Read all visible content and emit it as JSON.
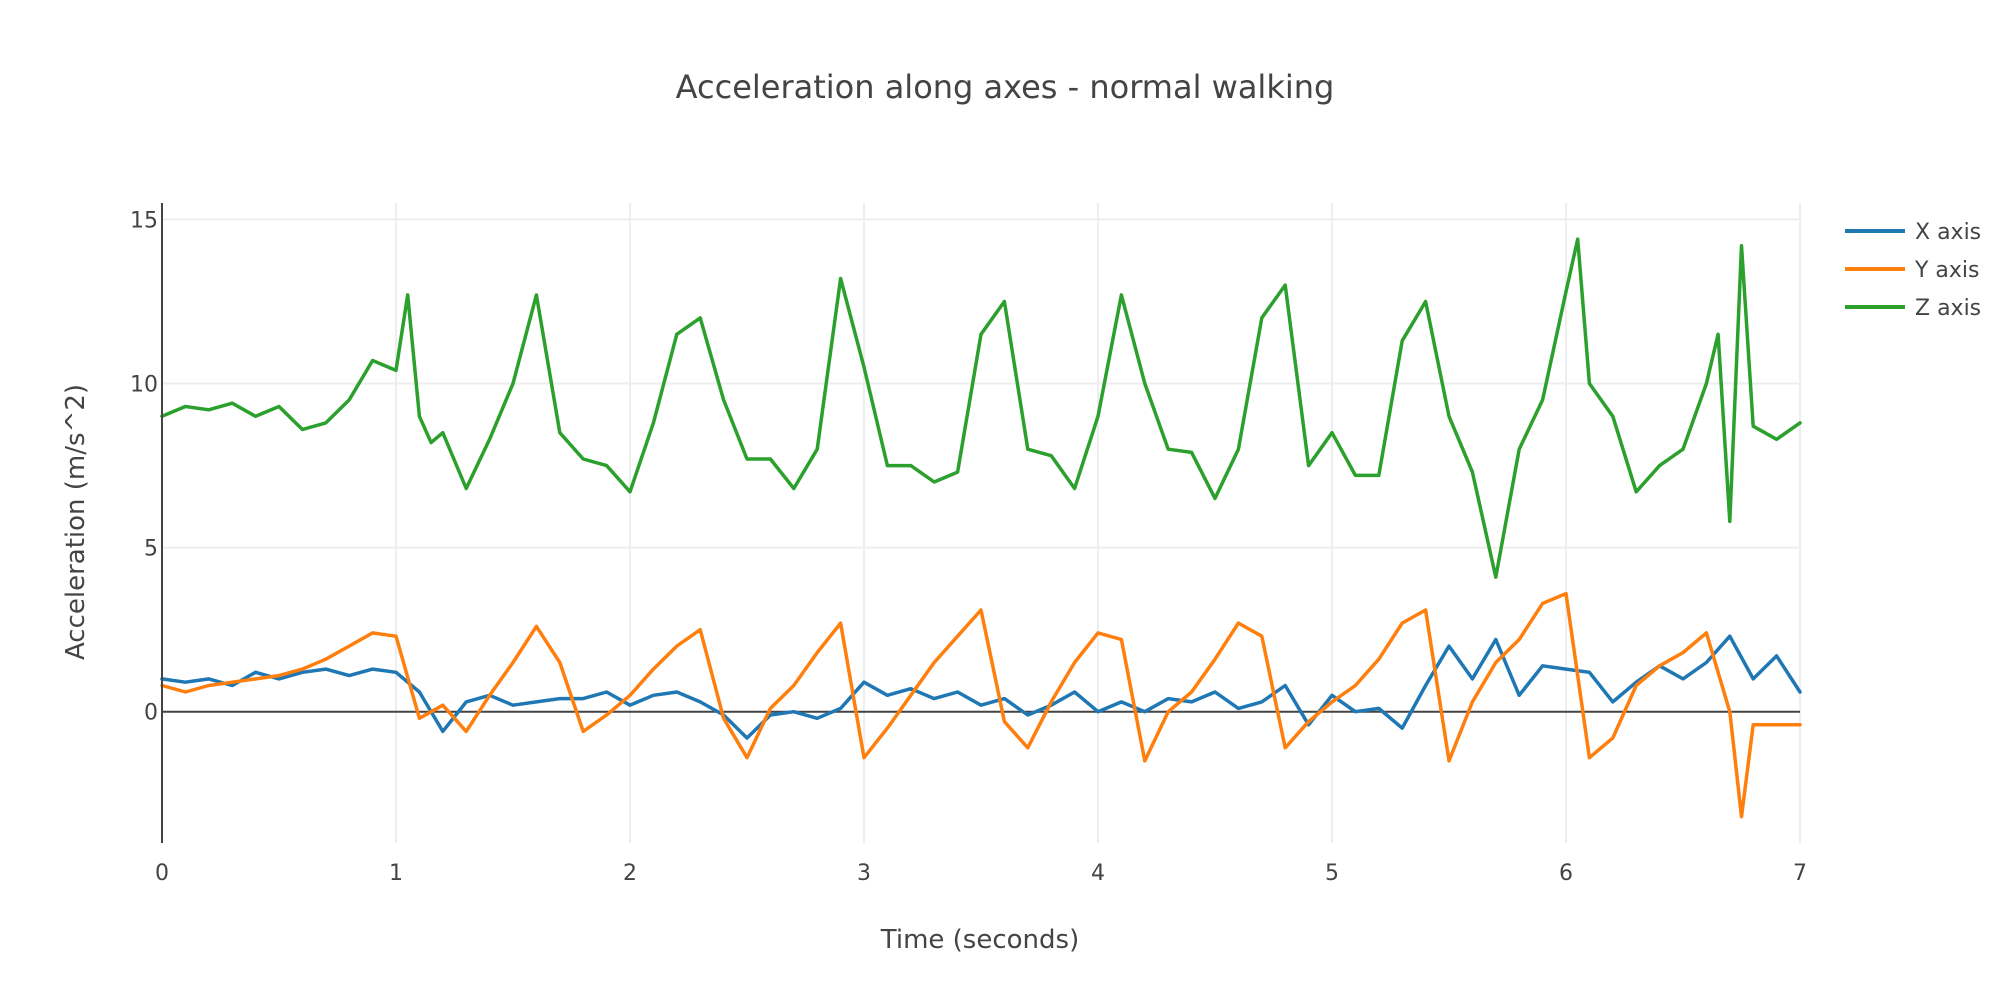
{
  "chart_data": {
    "type": "line",
    "title": "Acceleration along axes - normal walking",
    "xlabel": "Time (seconds)",
    "ylabel": "Acceleration (m/s^2)",
    "xlim": [
      0,
      7
    ],
    "ylim": [
      -4,
      15.5
    ],
    "x_ticks": [
      0,
      1,
      2,
      3,
      4,
      5,
      6,
      7
    ],
    "y_ticks": [
      0,
      5,
      10,
      15
    ],
    "grid": true,
    "legend_position": "top-right",
    "series": [
      {
        "name": "X axis",
        "color": "#1f77b4",
        "x": [
          0,
          0.1,
          0.2,
          0.3,
          0.4,
          0.5,
          0.6,
          0.7,
          0.8,
          0.9,
          1.0,
          1.1,
          1.2,
          1.3,
          1.4,
          1.5,
          1.6,
          1.7,
          1.8,
          1.9,
          2.0,
          2.1,
          2.2,
          2.3,
          2.4,
          2.5,
          2.6,
          2.7,
          2.8,
          2.9,
          3.0,
          3.1,
          3.2,
          3.3,
          3.4,
          3.5,
          3.6,
          3.7,
          3.8,
          3.9,
          4.0,
          4.1,
          4.2,
          4.3,
          4.4,
          4.5,
          4.6,
          4.7,
          4.8,
          4.9,
          5.0,
          5.1,
          5.2,
          5.3,
          5.4,
          5.5,
          5.6,
          5.7,
          5.8,
          5.9,
          6.0,
          6.1,
          6.2,
          6.3,
          6.4,
          6.5,
          6.6,
          6.7,
          6.8,
          6.9,
          7.0
        ],
        "y": [
          1.0,
          0.9,
          1.0,
          0.8,
          1.2,
          1.0,
          1.2,
          1.3,
          1.1,
          1.3,
          1.2,
          0.6,
          -0.6,
          0.3,
          0.5,
          0.2,
          0.3,
          0.4,
          0.4,
          0.6,
          0.2,
          0.5,
          0.6,
          0.3,
          -0.1,
          -0.8,
          -0.1,
          0.0,
          -0.2,
          0.1,
          0.9,
          0.5,
          0.7,
          0.4,
          0.6,
          0.2,
          0.4,
          -0.1,
          0.2,
          0.6,
          0.0,
          0.3,
          0.0,
          0.4,
          0.3,
          0.6,
          0.1,
          0.3,
          0.8,
          -0.4,
          0.5,
          0.0,
          0.1,
          -0.5,
          0.8,
          2.0,
          1.0,
          2.2,
          0.5,
          1.4,
          1.3,
          1.2,
          0.3,
          0.9,
          1.4,
          1.0,
          1.5,
          2.3,
          1.0,
          1.7,
          0.6
        ]
      },
      {
        "name": "Y axis",
        "color": "#ff7f0e",
        "x": [
          0,
          0.1,
          0.2,
          0.3,
          0.4,
          0.5,
          0.6,
          0.7,
          0.8,
          0.9,
          1.0,
          1.1,
          1.2,
          1.3,
          1.4,
          1.5,
          1.6,
          1.7,
          1.8,
          1.9,
          2.0,
          2.1,
          2.2,
          2.3,
          2.4,
          2.5,
          2.6,
          2.7,
          2.8,
          2.9,
          3.0,
          3.1,
          3.2,
          3.3,
          3.4,
          3.5,
          3.6,
          3.7,
          3.8,
          3.9,
          4.0,
          4.1,
          4.2,
          4.3,
          4.4,
          4.5,
          4.6,
          4.7,
          4.8,
          4.9,
          5.0,
          5.1,
          5.2,
          5.3,
          5.4,
          5.5,
          5.6,
          5.7,
          5.8,
          5.9,
          6.0,
          6.1,
          6.2,
          6.3,
          6.4,
          6.5,
          6.6,
          6.7,
          6.75,
          6.8,
          6.9,
          7.0
        ],
        "y": [
          0.8,
          0.6,
          0.8,
          0.9,
          1.0,
          1.1,
          1.3,
          1.6,
          2.0,
          2.4,
          2.3,
          -0.2,
          0.2,
          -0.6,
          0.5,
          1.5,
          2.6,
          1.5,
          -0.6,
          -0.1,
          0.5,
          1.3,
          2.0,
          2.5,
          -0.2,
          -1.4,
          0.1,
          0.8,
          1.8,
          2.7,
          -1.4,
          -0.5,
          0.5,
          1.5,
          2.3,
          3.1,
          -0.3,
          -1.1,
          0.3,
          1.5,
          2.4,
          2.2,
          -1.5,
          0.0,
          0.6,
          1.6,
          2.7,
          2.3,
          -1.1,
          -0.3,
          0.3,
          0.8,
          1.6,
          2.7,
          3.1,
          -1.5,
          0.3,
          1.5,
          2.2,
          3.3,
          3.6,
          -1.4,
          -0.8,
          0.8,
          1.4,
          1.8,
          2.4,
          0.0,
          -3.2,
          -0.4,
          -0.4,
          -0.4
        ]
      },
      {
        "name": "Z axis",
        "color": "#2ca02c",
        "x": [
          0,
          0.1,
          0.2,
          0.3,
          0.4,
          0.5,
          0.6,
          0.7,
          0.8,
          0.9,
          1.0,
          1.05,
          1.1,
          1.15,
          1.2,
          1.3,
          1.4,
          1.5,
          1.6,
          1.7,
          1.8,
          1.9,
          2.0,
          2.1,
          2.2,
          2.3,
          2.4,
          2.5,
          2.6,
          2.7,
          2.8,
          2.9,
          3.0,
          3.1,
          3.2,
          3.3,
          3.4,
          3.5,
          3.6,
          3.7,
          3.8,
          3.9,
          4.0,
          4.1,
          4.2,
          4.3,
          4.4,
          4.5,
          4.6,
          4.7,
          4.8,
          4.9,
          5.0,
          5.1,
          5.2,
          5.3,
          5.4,
          5.5,
          5.6,
          5.7,
          5.8,
          5.9,
          6.0,
          6.05,
          6.1,
          6.2,
          6.3,
          6.4,
          6.5,
          6.6,
          6.65,
          6.7,
          6.75,
          6.8,
          6.9,
          7.0
        ],
        "y": [
          9.0,
          9.3,
          9.2,
          9.4,
          9.0,
          9.3,
          8.6,
          8.8,
          9.5,
          10.7,
          10.4,
          12.7,
          9.0,
          8.2,
          8.5,
          6.8,
          8.3,
          10.0,
          12.7,
          8.5,
          7.7,
          7.5,
          6.7,
          8.8,
          11.5,
          12.0,
          9.5,
          7.7,
          7.7,
          6.8,
          8.0,
          13.2,
          10.5,
          7.5,
          7.5,
          7.0,
          7.3,
          11.5,
          12.5,
          8.0,
          7.8,
          6.8,
          9.0,
          12.7,
          10.0,
          8.0,
          7.9,
          6.5,
          8.0,
          12.0,
          13.0,
          7.5,
          8.5,
          7.2,
          7.2,
          11.3,
          12.5,
          9.0,
          7.3,
          4.1,
          8.0,
          9.5,
          12.8,
          14.4,
          10.0,
          9.0,
          6.7,
          7.5,
          8.0,
          10.0,
          11.5,
          5.8,
          14.2,
          8.7,
          8.3,
          8.8
        ]
      }
    ]
  }
}
